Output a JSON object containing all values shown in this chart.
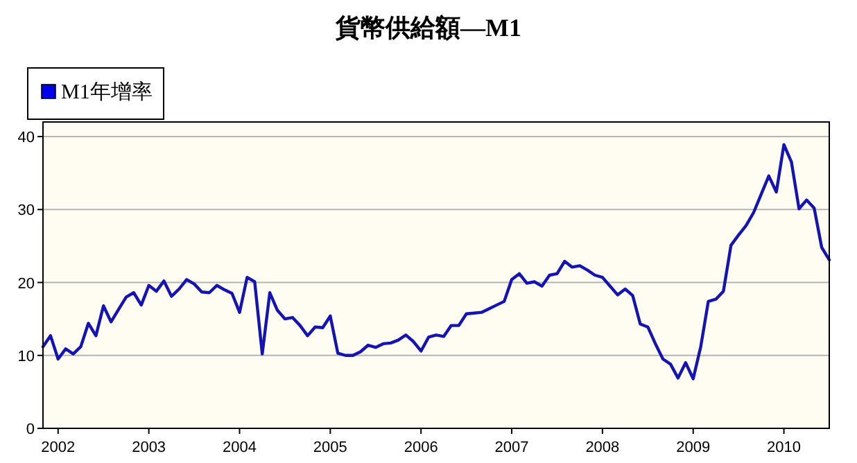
{
  "chart_data": {
    "type": "line",
    "title": "貨幣供給額—M1",
    "x": [
      "2001-11",
      "2001-12",
      "2002-01",
      "2002-02",
      "2002-03",
      "2002-04",
      "2002-05",
      "2002-06",
      "2002-07",
      "2002-08",
      "2002-09",
      "2002-10",
      "2002-11",
      "2002-12",
      "2003-01",
      "2003-02",
      "2003-03",
      "2003-04",
      "2003-05",
      "2003-06",
      "2003-07",
      "2003-08",
      "2003-09",
      "2003-10",
      "2003-11",
      "2003-12",
      "2004-01",
      "2004-02",
      "2004-03",
      "2004-04",
      "2004-05",
      "2004-06",
      "2004-07",
      "2004-08",
      "2004-09",
      "2004-10",
      "2004-11",
      "2004-12",
      "2005-01",
      "2005-02",
      "2005-03",
      "2005-04",
      "2005-05",
      "2005-06",
      "2005-07",
      "2005-08",
      "2005-09",
      "2005-10",
      "2005-11",
      "2005-12",
      "2006-01",
      "2006-02",
      "2006-03",
      "2006-04",
      "2006-05",
      "2006-06",
      "2006-07",
      "2006-08",
      "2006-09",
      "2006-10",
      "2006-11",
      "2006-12",
      "2007-01",
      "2007-02",
      "2007-03",
      "2007-04",
      "2007-05",
      "2007-06",
      "2007-07",
      "2007-08",
      "2007-09",
      "2007-10",
      "2007-11",
      "2007-12",
      "2008-01",
      "2008-02",
      "2008-03",
      "2008-04",
      "2008-05",
      "2008-06",
      "2008-07",
      "2008-08",
      "2008-09",
      "2008-10",
      "2008-11",
      "2008-12",
      "2009-01",
      "2009-02",
      "2009-03",
      "2009-04",
      "2009-05",
      "2009-06",
      "2009-07",
      "2009-08",
      "2009-09",
      "2009-10",
      "2009-11",
      "2009-12",
      "2010-01",
      "2010-02",
      "2010-03",
      "2010-04",
      "2010-05",
      "2010-06",
      "2010-07"
    ],
    "series": [
      {
        "name": "M1年增率",
        "color": "#1414b4",
        "values": [
          11.2,
          12.7,
          9.5,
          10.9,
          10.2,
          11.2,
          14.4,
          12.7,
          16.8,
          14.6,
          16.3,
          18.0,
          18.6,
          16.9,
          19.6,
          18.8,
          20.2,
          18.1,
          19.1,
          20.4,
          19.8,
          18.7,
          18.6,
          19.6,
          19.0,
          18.5,
          15.9,
          20.7,
          20.1,
          10.2,
          18.6,
          16.2,
          15.0,
          15.2,
          14.1,
          12.7,
          13.9,
          13.8,
          15.4,
          10.3,
          10.0,
          10.0,
          10.5,
          11.4,
          11.1,
          11.6,
          11.7,
          12.1,
          12.8,
          11.9,
          10.6,
          12.5,
          12.8,
          12.6,
          14.1,
          14.1,
          15.7,
          15.8,
          15.9,
          16.4,
          16.9,
          17.4,
          20.4,
          21.2,
          19.9,
          20.1,
          19.5,
          21.0,
          21.2,
          22.9,
          22.1,
          22.3,
          21.7,
          21.0,
          20.7,
          19.5,
          18.3,
          19.1,
          18.2,
          14.3,
          13.9,
          11.6,
          9.5,
          8.8,
          6.9,
          9.0,
          6.8,
          11.2,
          17.4,
          17.7,
          18.8,
          25.1,
          26.5,
          27.8,
          29.6,
          32.1,
          34.6,
          32.4,
          38.9,
          36.5,
          30.1,
          31.3,
          30.2,
          24.8,
          23.1
        ]
      }
    ],
    "xlim": [
      "2001-11",
      "2010-07"
    ],
    "xticks": [
      "2002",
      "2003",
      "2004",
      "2005",
      "2006",
      "2007",
      "2008",
      "2009",
      "2010"
    ],
    "ylim": [
      0,
      42
    ],
    "yticks": [
      0,
      10,
      20,
      30,
      40
    ],
    "grid": "y",
    "legend": "top left"
  }
}
